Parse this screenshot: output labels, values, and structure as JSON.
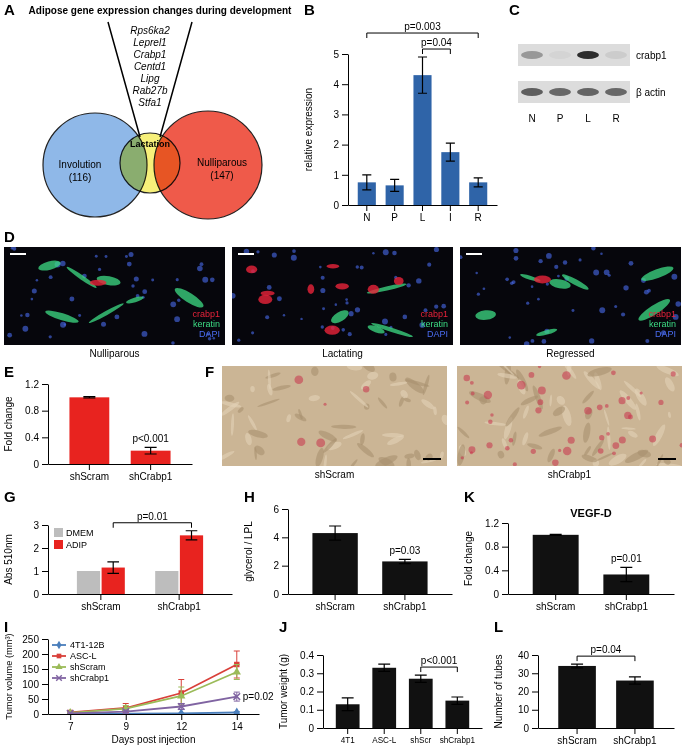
{
  "venn": {
    "panel_label": "A",
    "title": "Adipose gene expression changes during development",
    "genes": [
      "Rps6ka2",
      "Leprel1",
      "Crabp1",
      "Centd1",
      "Lipg",
      "Rab27b",
      "Stfa1"
    ],
    "sets": [
      {
        "label": "Involution",
        "count": "(116)",
        "color": "#8fb8e8"
      },
      {
        "label": "Lactation",
        "color": "#f7f07a"
      },
      {
        "label": "Nulliparous",
        "count": "(147)",
        "color": "#ef5a4a"
      }
    ]
  },
  "blot": {
    "panel_label": "C",
    "bands": [
      "crabp1",
      "β actin"
    ],
    "lanes": [
      "N",
      "P",
      "L",
      "R"
    ]
  },
  "micrographs": [
    {
      "panel_label": "D",
      "captions": [
        "Nulliparous",
        "Lactating",
        "Regressed"
      ],
      "legend": [
        {
          "label": "crabp1",
          "color": "#e8233a"
        },
        {
          "label": "keratin",
          "color": "#3ddc84"
        },
        {
          "label": "DAPI",
          "color": "#4a6cf0"
        }
      ]
    },
    {
      "panel_label": "F",
      "captions": [
        "shScram",
        "shCrabp1"
      ]
    }
  ],
  "chart_data": [
    {
      "type": "bar",
      "panel_label": "B",
      "categories": [
        "N",
        "P",
        "L",
        "I",
        "R"
      ],
      "values": [
        0.75,
        0.65,
        4.3,
        1.75,
        0.75
      ],
      "errors": [
        0.25,
        0.2,
        0.6,
        0.3,
        0.15
      ],
      "color": "#2f64a8",
      "y_label": "relative expression",
      "ylim": [
        0,
        5
      ],
      "yticks": [
        0,
        1,
        2,
        3,
        4,
        5
      ],
      "annotations": [
        {
          "text": "p=0.003",
          "between": [
            "N",
            "R"
          ]
        },
        {
          "text": "p=0.04",
          "between": [
            "L",
            "I"
          ]
        }
      ]
    },
    {
      "type": "bar",
      "panel_label": "E",
      "categories": [
        "shScram",
        "shCrabp1"
      ],
      "values": [
        1.0,
        0.2
      ],
      "errors": [
        0.01,
        0.05
      ],
      "color": "#e8231f",
      "y_label": "Fold change",
      "ylim": [
        0,
        1.2
      ],
      "yticks": [
        0,
        0.4,
        0.8,
        1.2
      ],
      "annotations": [
        {
          "text": "p<0.001",
          "at": "shCrabp1"
        }
      ]
    },
    {
      "type": "bar",
      "panel_label": "G",
      "categories": [
        "shScram",
        "shCrabp1"
      ],
      "series": [
        {
          "name": "DMEM",
          "color": "#bdbdbd",
          "values": [
            1,
            1
          ]
        },
        {
          "name": "ADIP",
          "color": "#e8231f",
          "values": [
            1.15,
            2.55
          ],
          "errors": [
            0.25,
            0.2
          ]
        }
      ],
      "legend": "top-left",
      "y_label": "Abs 510nm",
      "ylim": [
        0,
        3
      ],
      "yticks": [
        0,
        1,
        2,
        3
      ],
      "annotations": [
        {
          "text": "p=0.01",
          "between": [
            "shScram",
            "shCrabp1"
          ],
          "series": "ADIP"
        }
      ]
    },
    {
      "type": "bar",
      "panel_label": "H",
      "categories": [
        "shScram",
        "shCrabp1"
      ],
      "values": [
        4.3,
        2.3
      ],
      "errors": [
        0.5,
        0.15
      ],
      "color": "#111111",
      "y_label": "glycerol / LPL",
      "ylim": [
        0,
        6
      ],
      "yticks": [
        0,
        2,
        4,
        6
      ],
      "annotations": [
        {
          "text": "p=0.03",
          "at": "shCrabp1"
        }
      ]
    },
    {
      "type": "line",
      "panel_label": "I",
      "categories": [
        "7",
        "9",
        "12",
        "14"
      ],
      "x_label": "Days post injection",
      "y_label": "Tumor volume (mm³)",
      "ylim": [
        0,
        250
      ],
      "yticks": [
        0,
        50,
        100,
        150,
        200,
        250
      ],
      "legend": "top-left",
      "series": [
        {
          "name": "4T1-12B",
          "color": "#4a7ebb",
          "marker": "diamond",
          "values": [
            0,
            1,
            2,
            5
          ],
          "errors": [
            0.5,
            1,
            1,
            3
          ]
        },
        {
          "name": "ASC-L",
          "color": "#d9403a",
          "marker": "square",
          "values": [
            5,
            20,
            70,
            165
          ],
          "errors": [
            3,
            15,
            45,
            45
          ]
        },
        {
          "name": "shScram",
          "color": "#9bbb59",
          "marker": "triangle",
          "values": [
            4,
            18,
            60,
            140
          ],
          "errors": [
            2,
            10,
            30,
            25
          ]
        },
        {
          "name": "shCrabp1",
          "color": "#8064a2",
          "marker": "cross",
          "values": [
            2,
            8,
            25,
            58
          ],
          "errors": [
            1,
            5,
            10,
            15
          ]
        }
      ],
      "annotations": [
        {
          "text": "p=0.02",
          "at": "14",
          "series": "shCrabp1"
        }
      ]
    },
    {
      "type": "bar",
      "panel_label": "J",
      "categories": [
        "4T1",
        "ASC-L",
        "shScr",
        "shCrabp1"
      ],
      "values": [
        0.13,
        0.33,
        0.27,
        0.15
      ],
      "errors": [
        0.035,
        0.02,
        0.02,
        0.02
      ],
      "color": "#111111",
      "y_label": "Tumor weight (g)",
      "ylim": [
        0,
        0.4
      ],
      "yticks": [
        0,
        0.1,
        0.2,
        0.3,
        0.4
      ],
      "annotations": [
        {
          "text": "p<0.001",
          "between": [
            "shScr",
            "shCrabp1"
          ]
        }
      ]
    },
    {
      "type": "bar",
      "panel_label": "K",
      "title": "VEGF-D",
      "categories": [
        "shScram",
        "shCrabp1"
      ],
      "values": [
        1.0,
        0.33
      ],
      "errors": [
        0.01,
        0.12
      ],
      "color": "#111111",
      "y_label": "Fold change",
      "ylim": [
        0,
        1.2
      ],
      "yticks": [
        0,
        0.4,
        0.8,
        1.2
      ],
      "annotations": [
        {
          "text": "p=0.01",
          "at": "shCrabp1"
        }
      ]
    },
    {
      "type": "bar",
      "panel_label": "L",
      "categories": [
        "shScram",
        "shCrabp1"
      ],
      "values": [
        34,
        26
      ],
      "errors": [
        1,
        2
      ],
      "color": "#111111",
      "y_label": "Number of tubes",
      "ylim": [
        0,
        40
      ],
      "yticks": [
        0,
        10,
        20,
        30,
        40
      ],
      "annotations": [
        {
          "text": "p=0.04",
          "between": [
            "shScram",
            "shCrabp1"
          ]
        }
      ]
    }
  ]
}
